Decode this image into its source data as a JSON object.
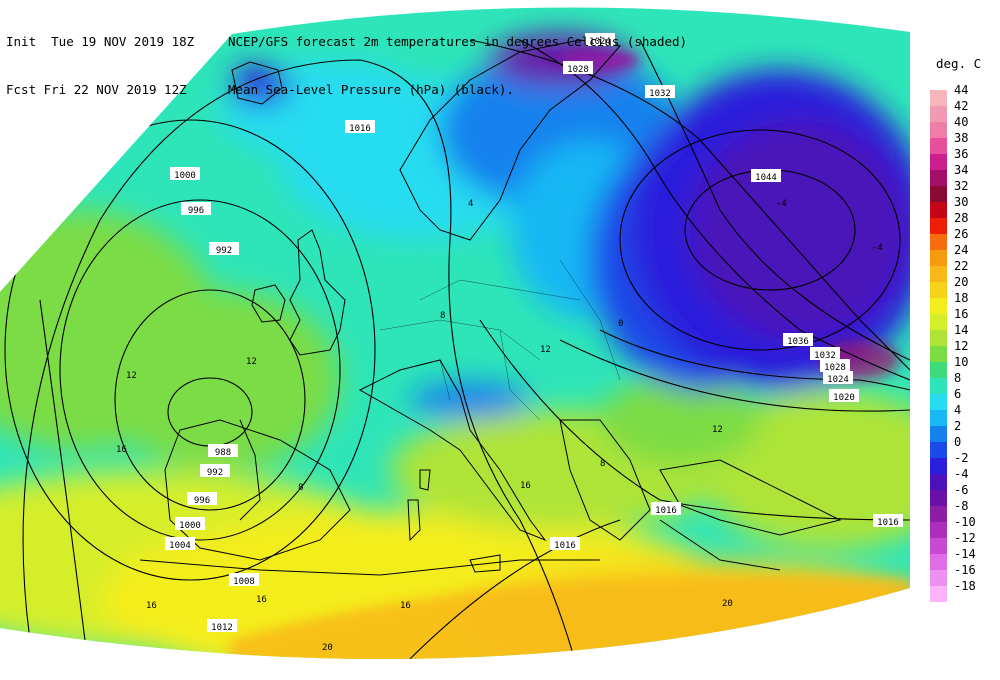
{
  "header": {
    "init_line": "Init  Tue 19 NOV 2019 18Z",
    "fcst_line": "Fcst Fri 22 NOV 2019 12Z",
    "title_line1": "NCEP/GFS forecast 2m temperatures in degrees Celcius (shaded)",
    "title_line2": "Mean Sea-Level Pressure (hPa) (black)."
  },
  "legend": {
    "title": "deg. C",
    "entries": [
      {
        "label": "44",
        "color": "#f6b5b8"
      },
      {
        "label": "42",
        "color": "#f19ab1"
      },
      {
        "label": "40",
        "color": "#ee7ea8"
      },
      {
        "label": "38",
        "color": "#e84f9b"
      },
      {
        "label": "36",
        "color": "#cc1e8c"
      },
      {
        "label": "34",
        "color": "#a40f69"
      },
      {
        "label": "32",
        "color": "#8a0a34"
      },
      {
        "label": "30",
        "color": "#c40516"
      },
      {
        "label": "28",
        "color": "#ef1d05"
      },
      {
        "label": "26",
        "color": "#f76c0d"
      },
      {
        "label": "24",
        "color": "#f79a10"
      },
      {
        "label": "22",
        "color": "#f8b817"
      },
      {
        "label": "20",
        "color": "#f7d21a"
      },
      {
        "label": "18",
        "color": "#f4ed1d"
      },
      {
        "label": "16",
        "color": "#d5ee2a"
      },
      {
        "label": "14",
        "color": "#aee437"
      },
      {
        "label": "12",
        "color": "#7cdc45"
      },
      {
        "label": "10",
        "color": "#3fdb7a"
      },
      {
        "label": "8",
        "color": "#2ee5b9"
      },
      {
        "label": "6",
        "color": "#27dcf0"
      },
      {
        "label": "4",
        "color": "#18b8f4"
      },
      {
        "label": "2",
        "color": "#1681ee"
      },
      {
        "label": "0",
        "color": "#1a4ae8"
      },
      {
        "label": "-2",
        "color": "#2a1fdc"
      },
      {
        "label": "-4",
        "color": "#4b12b9"
      },
      {
        "label": "-6",
        "color": "#6a0fa7"
      },
      {
        "label": "-8",
        "color": "#8c1da5"
      },
      {
        "label": "-10",
        "color": "#ad2ebd"
      },
      {
        "label": "-12",
        "color": "#c84ad3"
      },
      {
        "label": "-14",
        "color": "#df6de5"
      },
      {
        "label": "-16",
        "color": "#ee90f0"
      },
      {
        "label": "-18",
        "color": "#fbb3fc"
      }
    ]
  },
  "isobar_labels": [
    "1024",
    "1028",
    "1032",
    "1044",
    "1036",
    "1032",
    "1028",
    "1024",
    "1020",
    "1016",
    "1016",
    "1016",
    "1016",
    "1000",
    "996",
    "992",
    "988",
    "992",
    "996",
    "1000",
    "1004",
    "1008",
    "1012"
  ],
  "temperature_labels": [
    "12",
    "12",
    "16",
    "8",
    "8",
    "12",
    "16",
    "16",
    "20",
    "16",
    "20",
    "12",
    "8",
    "4",
    "0",
    "-4",
    "-4",
    "16"
  ]
}
